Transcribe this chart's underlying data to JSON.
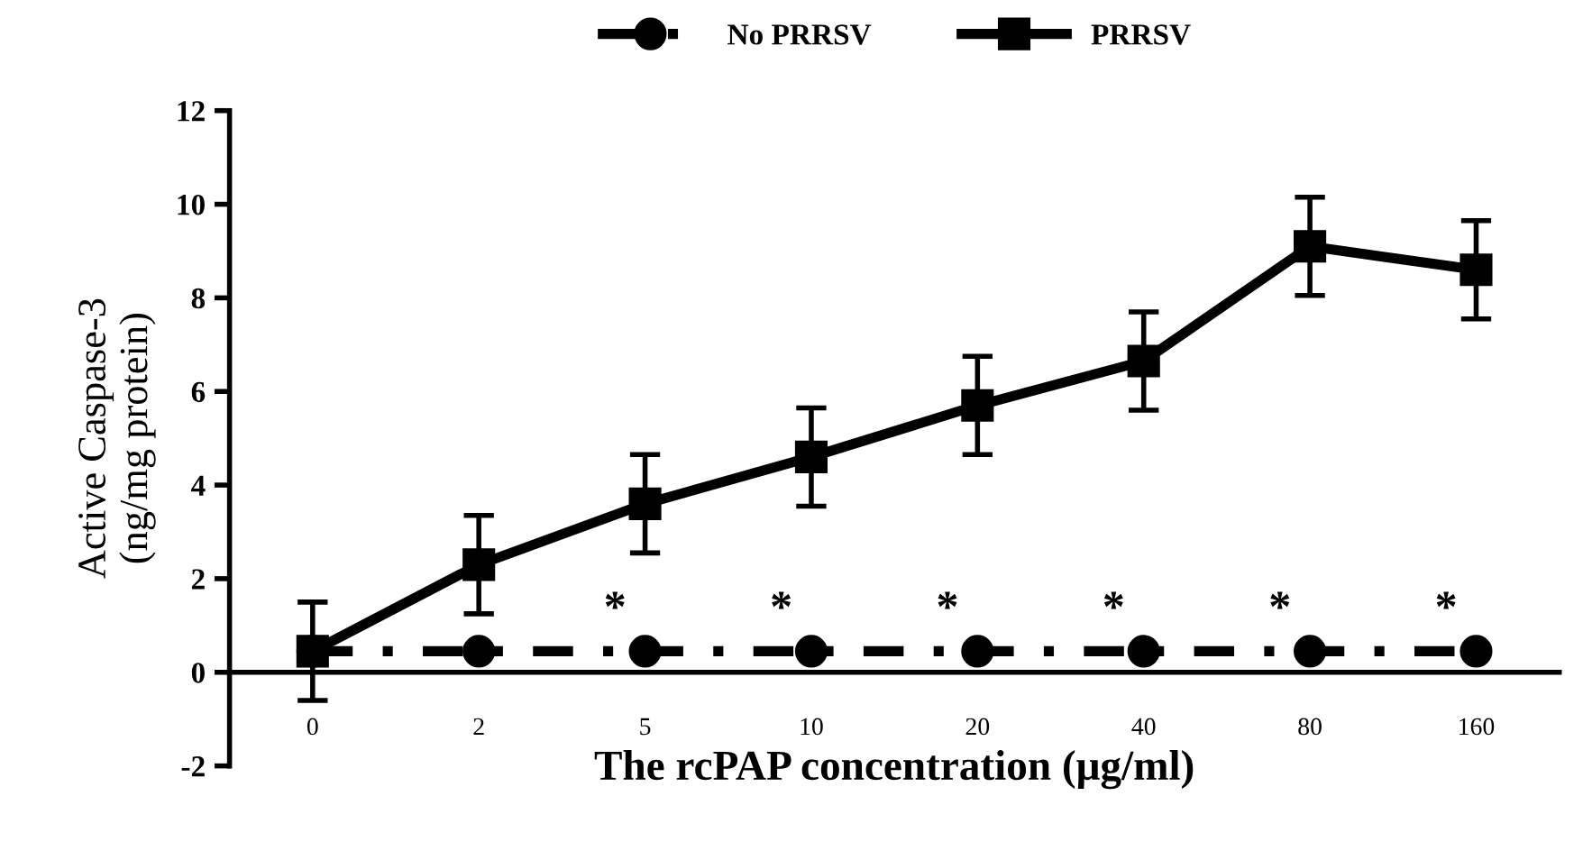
{
  "chart_data": {
    "type": "line",
    "xlabel": "The rcPAP concentration (μg/ml)",
    "ylabel": "Active Caspase-3\n(ng/mg protein)",
    "categories": [
      "0",
      "2",
      "5",
      "10",
      "20",
      "40",
      "80",
      "160"
    ],
    "series": [
      {
        "name": "No PRRSV",
        "color": "#000000",
        "marker": "circle",
        "line_style": "dashdot",
        "values": [
          0.45,
          0.45,
          0.45,
          0.45,
          0.45,
          0.45,
          0.45,
          0.45
        ]
      },
      {
        "name": "PRRSV",
        "color": "#000000",
        "marker": "square",
        "line_style": "solid",
        "values": [
          0.45,
          2.3,
          3.6,
          4.6,
          5.7,
          6.65,
          9.1,
          8.6
        ],
        "errors": [
          1.05,
          1.05,
          1.05,
          1.05,
          1.05,
          1.05,
          1.05,
          1.05
        ]
      }
    ],
    "annotations": [
      {
        "text": "*",
        "x": "5",
        "y": 0.45
      },
      {
        "text": "*",
        "x": "10",
        "y": 0.45
      },
      {
        "text": "*",
        "x": "20",
        "y": 0.45
      },
      {
        "text": "*",
        "x": "40",
        "y": 0.45
      },
      {
        "text": "*",
        "x": "80",
        "y": 0.45
      },
      {
        "text": "*",
        "x": "160",
        "y": 0.45
      }
    ],
    "ylim": [
      -2,
      12
    ],
    "yticks": [
      -2,
      0,
      2,
      4,
      6,
      8,
      10,
      12
    ],
    "grid": false,
    "legend": "top"
  }
}
